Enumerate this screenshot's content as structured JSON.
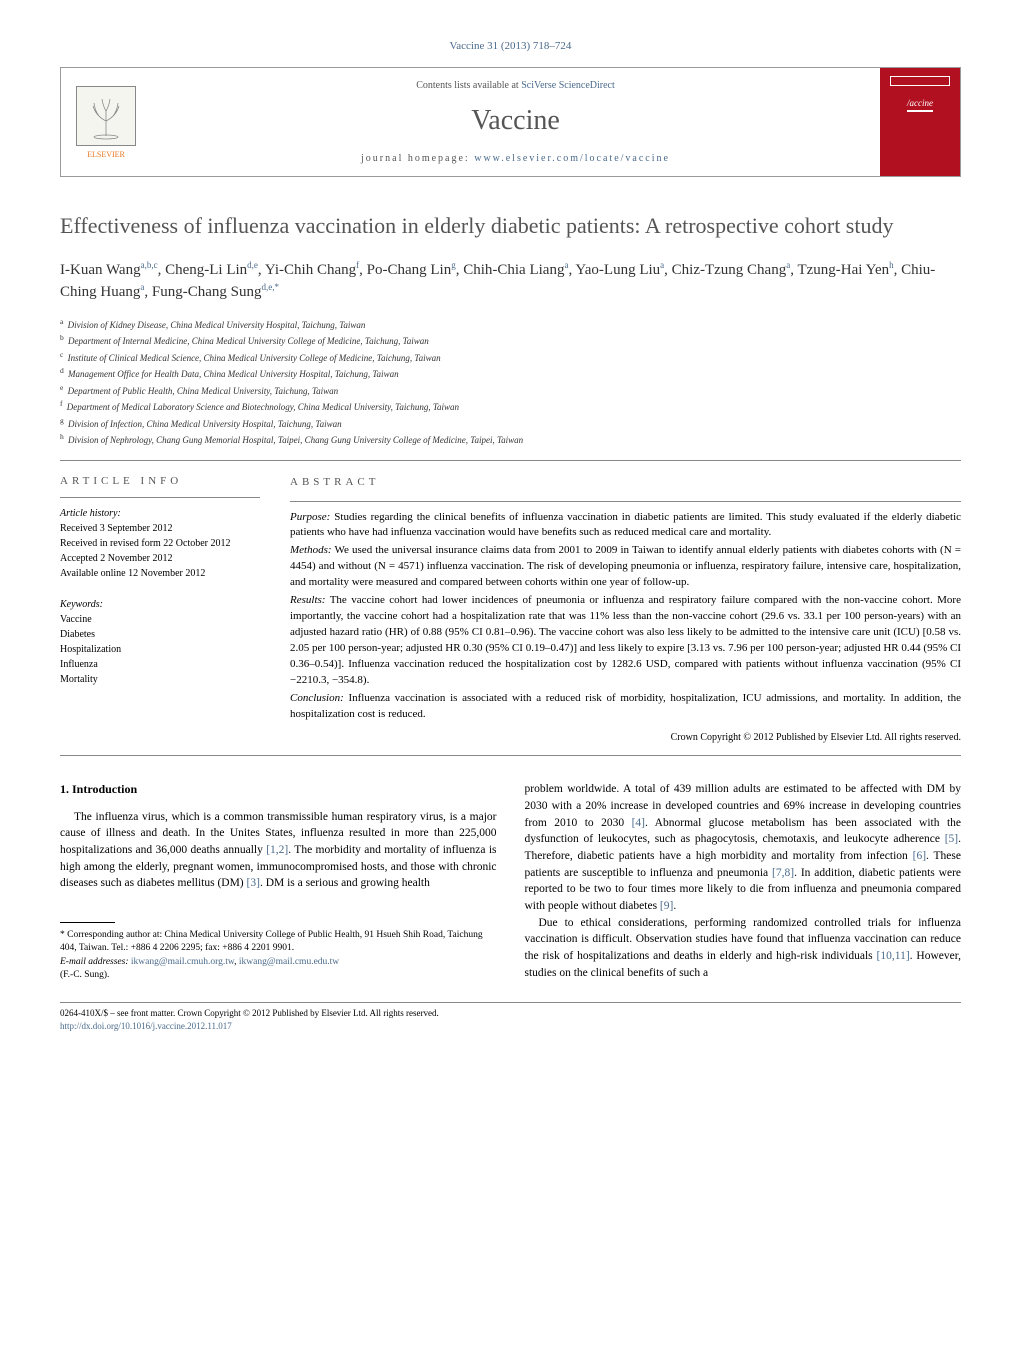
{
  "journal_ref": "Vaccine 31 (2013) 718–724",
  "header": {
    "elsevier": "ELSEVIER",
    "contents_prefix": "Contents lists available at ",
    "contents_link": "SciVerse ScienceDirect",
    "journal_title": "Vaccine",
    "homepage_prefix": "journal homepage: ",
    "homepage_link": "www.elsevier.com/locate/vaccine",
    "cover_label": "/accine"
  },
  "title": "Effectiveness of influenza vaccination in elderly diabetic patients: A retrospective cohort study",
  "authors": [
    {
      "name": "I-Kuan Wang",
      "aff": "a,b,c"
    },
    {
      "name": "Cheng-Li Lin",
      "aff": "d,e"
    },
    {
      "name": "Yi-Chih Chang",
      "aff": "f"
    },
    {
      "name": "Po-Chang Lin",
      "aff": "g"
    },
    {
      "name": "Chih-Chia Liang",
      "aff": "a"
    },
    {
      "name": "Yao-Lung Liu",
      "aff": "a"
    },
    {
      "name": "Chiz-Tzung Chang",
      "aff": "a"
    },
    {
      "name": "Tzung-Hai Yen",
      "aff": "h"
    },
    {
      "name": "Chiu-Ching Huang",
      "aff": "a"
    },
    {
      "name": "Fung-Chang Sung",
      "aff": "d,e,*"
    }
  ],
  "affiliations": [
    {
      "key": "a",
      "text": "Division of Kidney Disease, China Medical University Hospital, Taichung, Taiwan"
    },
    {
      "key": "b",
      "text": "Department of Internal Medicine, China Medical University College of Medicine, Taichung, Taiwan"
    },
    {
      "key": "c",
      "text": "Institute of Clinical Medical Science, China Medical University College of Medicine, Taichung, Taiwan"
    },
    {
      "key": "d",
      "text": "Management Office for Health Data, China Medical University Hospital, Taichung, Taiwan"
    },
    {
      "key": "e",
      "text": "Department of Public Health, China Medical University, Taichung, Taiwan"
    },
    {
      "key": "f",
      "text": "Department of Medical Laboratory Science and Biotechnology, China Medical University, Taichung, Taiwan"
    },
    {
      "key": "g",
      "text": "Division of Infection, China Medical University Hospital, Taichung, Taiwan"
    },
    {
      "key": "h",
      "text": "Division of Nephrology, Chang Gung Memorial Hospital, Taipei, Chang Gung University College of Medicine, Taipei, Taiwan"
    }
  ],
  "article_info": {
    "head": "article info",
    "history_label": "Article history:",
    "history": [
      "Received 3 September 2012",
      "Received in revised form 22 October 2012",
      "Accepted 2 November 2012",
      "Available online 12 November 2012"
    ],
    "keywords_label": "Keywords:",
    "keywords": [
      "Vaccine",
      "Diabetes",
      "Hospitalization",
      "Influenza",
      "Mortality"
    ]
  },
  "abstract": {
    "head": "abstract",
    "purpose_label": "Purpose:",
    "purpose": "Studies regarding the clinical benefits of influenza vaccination in diabetic patients are limited. This study evaluated if the elderly diabetic patients who have had influenza vaccination would have benefits such as reduced medical care and mortality.",
    "methods_label": "Methods:",
    "methods": "We used the universal insurance claims data from 2001 to 2009 in Taiwan to identify annual elderly patients with diabetes cohorts with (N = 4454) and without (N = 4571) influenza vaccination. The risk of developing pneumonia or influenza, respiratory failure, intensive care, hospitalization, and mortality were measured and compared between cohorts within one year of follow-up.",
    "results_label": "Results:",
    "results": "The vaccine cohort had lower incidences of pneumonia or influenza and respiratory failure compared with the non-vaccine cohort. More importantly, the vaccine cohort had a hospitalization rate that was 11% less than the non-vaccine cohort (29.6 vs. 33.1 per 100 person-years) with an adjusted hazard ratio (HR) of 0.88 (95% CI 0.81–0.96). The vaccine cohort was also less likely to be admitted to the intensive care unit (ICU) [0.58 vs. 2.05 per 100 person-year; adjusted HR 0.30 (95% CI 0.19–0.47)] and less likely to expire [3.13 vs. 7.96 per 100 person-year; adjusted HR 0.44 (95% CI 0.36–0.54)]. Influenza vaccination reduced the hospitalization cost by 1282.6 USD, compared with patients without influenza vaccination (95% CI −2210.3, −354.8).",
    "conclusion_label": "Conclusion:",
    "conclusion": "Influenza vaccination is associated with a reduced risk of morbidity, hospitalization, ICU admissions, and mortality. In addition, the hospitalization cost is reduced.",
    "copyright": "Crown Copyright © 2012 Published by Elsevier Ltd. All rights reserved."
  },
  "intro": {
    "head": "1. Introduction",
    "p1a": "The influenza virus, which is a common transmissible human respiratory virus, is a major cause of illness and death. In the Unites States, influenza resulted in more than 225,000 hospitalizations and 36,000 deaths annually ",
    "r1": "[1,2]",
    "p1b": ". The morbidity and mortality of influenza is high among the elderly, pregnant women, immunocompromised hosts, and those with chronic diseases such as diabetes mellitus (DM) ",
    "r2": "[3]",
    "p1c": ". DM is a serious and growing health",
    "p2a": "problem worldwide. A total of 439 million adults are estimated to be affected with DM by 2030 with a 20% increase in developed countries and 69% increase in developing countries from 2010 to 2030 ",
    "r3": "[4]",
    "p2b": ". Abnormal glucose metabolism has been associated with the dysfunction of leukocytes, such as phagocytosis, chemotaxis, and leukocyte adherence ",
    "r4": "[5]",
    "p2c": ". Therefore, diabetic patients have a high morbidity and mortality from infection ",
    "r5": "[6]",
    "p2d": ". These patients are susceptible to influenza and pneumonia ",
    "r6": "[7,8]",
    "p2e": ". In addition, diabetic patients were reported to be two to four times more likely to die from influenza and pneumonia compared with people without diabetes ",
    "r7": "[9]",
    "p2f": ".",
    "p3a": "Due to ethical considerations, performing randomized controlled trials for influenza vaccination is difficult. Observation studies have found that influenza vaccination can reduce the risk of hospitalizations and deaths in elderly and high-risk individuals ",
    "r8": "[10,11]",
    "p3b": ". However, studies on the clinical benefits of such a"
  },
  "footnotes": {
    "corr": "* Corresponding author at: China Medical University College of Public Health, 91 Hsueh Shih Road, Taichung 404, Taiwan. Tel.: +886 4 2206 2295; fax: +886 4 2201 9901.",
    "email_label": "E-mail addresses:",
    "email1": "ikwang@mail.cmuh.org.tw",
    "email_sep": ", ",
    "email2": "ikwang@mail.cmu.edu.tw",
    "email_name": "(F.-C. Sung)."
  },
  "bottom": {
    "line": "0264-410X/$ – see front matter. Crown Copyright © 2012 Published by Elsevier Ltd. All rights reserved.",
    "doi": "http://dx.doi.org/10.1016/j.vaccine.2012.11.017"
  }
}
